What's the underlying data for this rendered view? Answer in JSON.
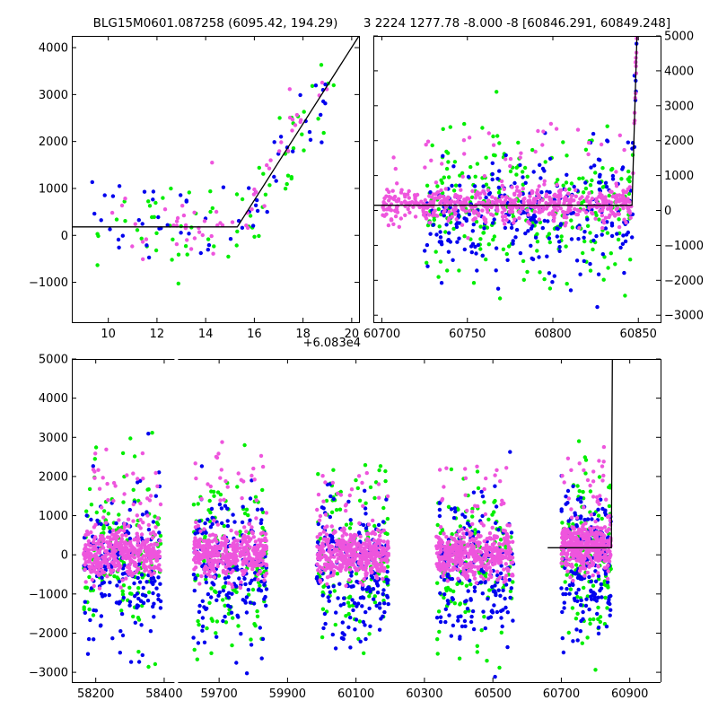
{
  "colors": {
    "green": "#00ee00",
    "blue": "#0000ee",
    "magenta": "#ee55dd",
    "model": "#000000",
    "background": "#ffffff"
  },
  "chart_data": [
    {
      "type": "scatter",
      "title": "BLG15M0601.087258 (6095.42, 194.29)",
      "x_offset_label": "+6.083e4",
      "xlim": [
        8.5,
        20.3
      ],
      "ylim": [
        -1850,
        4250
      ],
      "x_ticks": [
        10,
        12,
        14,
        16,
        18,
        20
      ],
      "y_ticks": [
        -1000,
        0,
        1000,
        2000,
        3000,
        4000
      ],
      "x_tick_labels": [
        "10",
        "12",
        "14",
        "16",
        "18",
        "20"
      ],
      "y_tick_labels": [
        "−1000",
        "0",
        "1000",
        "2000",
        "3000",
        "4000"
      ],
      "y_axis_side": "left",
      "model_line": {
        "x": [
          8.5,
          15.3,
          20.3
        ],
        "y": [
          180,
          180,
          4250
        ]
      },
      "series": [
        {
          "color": "green",
          "n": 70,
          "x_range": [
            9.5,
            19.3
          ],
          "noise": 500,
          "spread": 0.0
        },
        {
          "color": "blue",
          "n": 60,
          "x_range": [
            9.3,
            19.0
          ],
          "noise": 450,
          "spread": 0.0
        },
        {
          "color": "magenta",
          "n": 60,
          "x_range": [
            10.0,
            19.0
          ],
          "noise": 300,
          "spread": 0.0
        }
      ]
    },
    {
      "type": "scatter",
      "title": "3 2224 1277.78 -8.000 -8 [60846.291, 60849.248]",
      "xlim": [
        60695,
        60863
      ],
      "ylim": [
        -3200,
        5000
      ],
      "x_ticks": [
        60700,
        60750,
        60800,
        60850
      ],
      "y_ticks": [
        -3000,
        -2000,
        -1000,
        0,
        1000,
        2000,
        3000,
        4000,
        5000
      ],
      "x_tick_labels": [
        "60700",
        "60750",
        "60800",
        "60850"
      ],
      "y_tick_labels": [
        "−3000",
        "−2000",
        "−1000",
        "0",
        "1000",
        "2000",
        "3000",
        "4000",
        "5000"
      ],
      "y_axis_side": "right",
      "model_line": {
        "x": [
          60695,
          60846.3,
          60849.2
        ],
        "y": [
          150,
          150,
          5000
        ]
      },
      "series": [
        {
          "color": "green",
          "n": 260,
          "x_range": [
            60725,
            60849
          ],
          "noise": 1000,
          "spread": 0.0
        },
        {
          "color": "blue",
          "n": 280,
          "x_range": [
            60725,
            60849
          ],
          "noise": 900,
          "spread": 0.0
        },
        {
          "color": "magenta",
          "n": 600,
          "x_range": [
            60700,
            60849
          ],
          "noise": 250,
          "spread": 0.0
        }
      ]
    },
    {
      "type": "scatter",
      "xlim": [
        58130,
        60990
      ],
      "ylim": [
        -3250,
        5000
      ],
      "x_ticks": [
        58200,
        58400,
        59700,
        59900,
        60100,
        60300,
        60500,
        60700,
        60900
      ],
      "y_ticks": [
        -3000,
        -2000,
        -1000,
        0,
        1000,
        2000,
        3000,
        4000,
        5000
      ],
      "x_tick_labels": [
        "58200",
        "58400",
        "59700",
        "59900",
        "60100",
        "60300",
        "60500",
        "60700",
        "60900"
      ],
      "y_tick_labels": [
        "−3000",
        "−2000",
        "−1000",
        "0",
        "1000",
        "2000",
        "3000",
        "4000",
        "5000"
      ],
      "y_axis_side": "left",
      "broken_x_axis": true,
      "axis_segments": [
        [
          58130,
          58430
        ],
        [
          59580,
          60990
        ]
      ],
      "seasons": [
        {
          "x_range": [
            58165,
            58390
          ]
        },
        {
          "x_range": [
            59625,
            59840
          ]
        },
        {
          "x_range": [
            59985,
            60195
          ]
        },
        {
          "x_range": [
            60335,
            60560
          ]
        },
        {
          "x_range": [
            60700,
            60845
          ]
        }
      ],
      "model_line": {
        "x": [
          60660,
          60846.3,
          60849.2
        ],
        "y": [
          180,
          180,
          5000
        ]
      },
      "series": [
        {
          "color": "green",
          "n_per_season": 140,
          "noise": 1100,
          "spread": 0.0
        },
        {
          "color": "blue",
          "n_per_season": 190,
          "noise": 900,
          "spread": 0.0
        },
        {
          "color": "magenta",
          "n_per_season": 420,
          "noise": 300,
          "spread": 0.0
        }
      ]
    }
  ]
}
